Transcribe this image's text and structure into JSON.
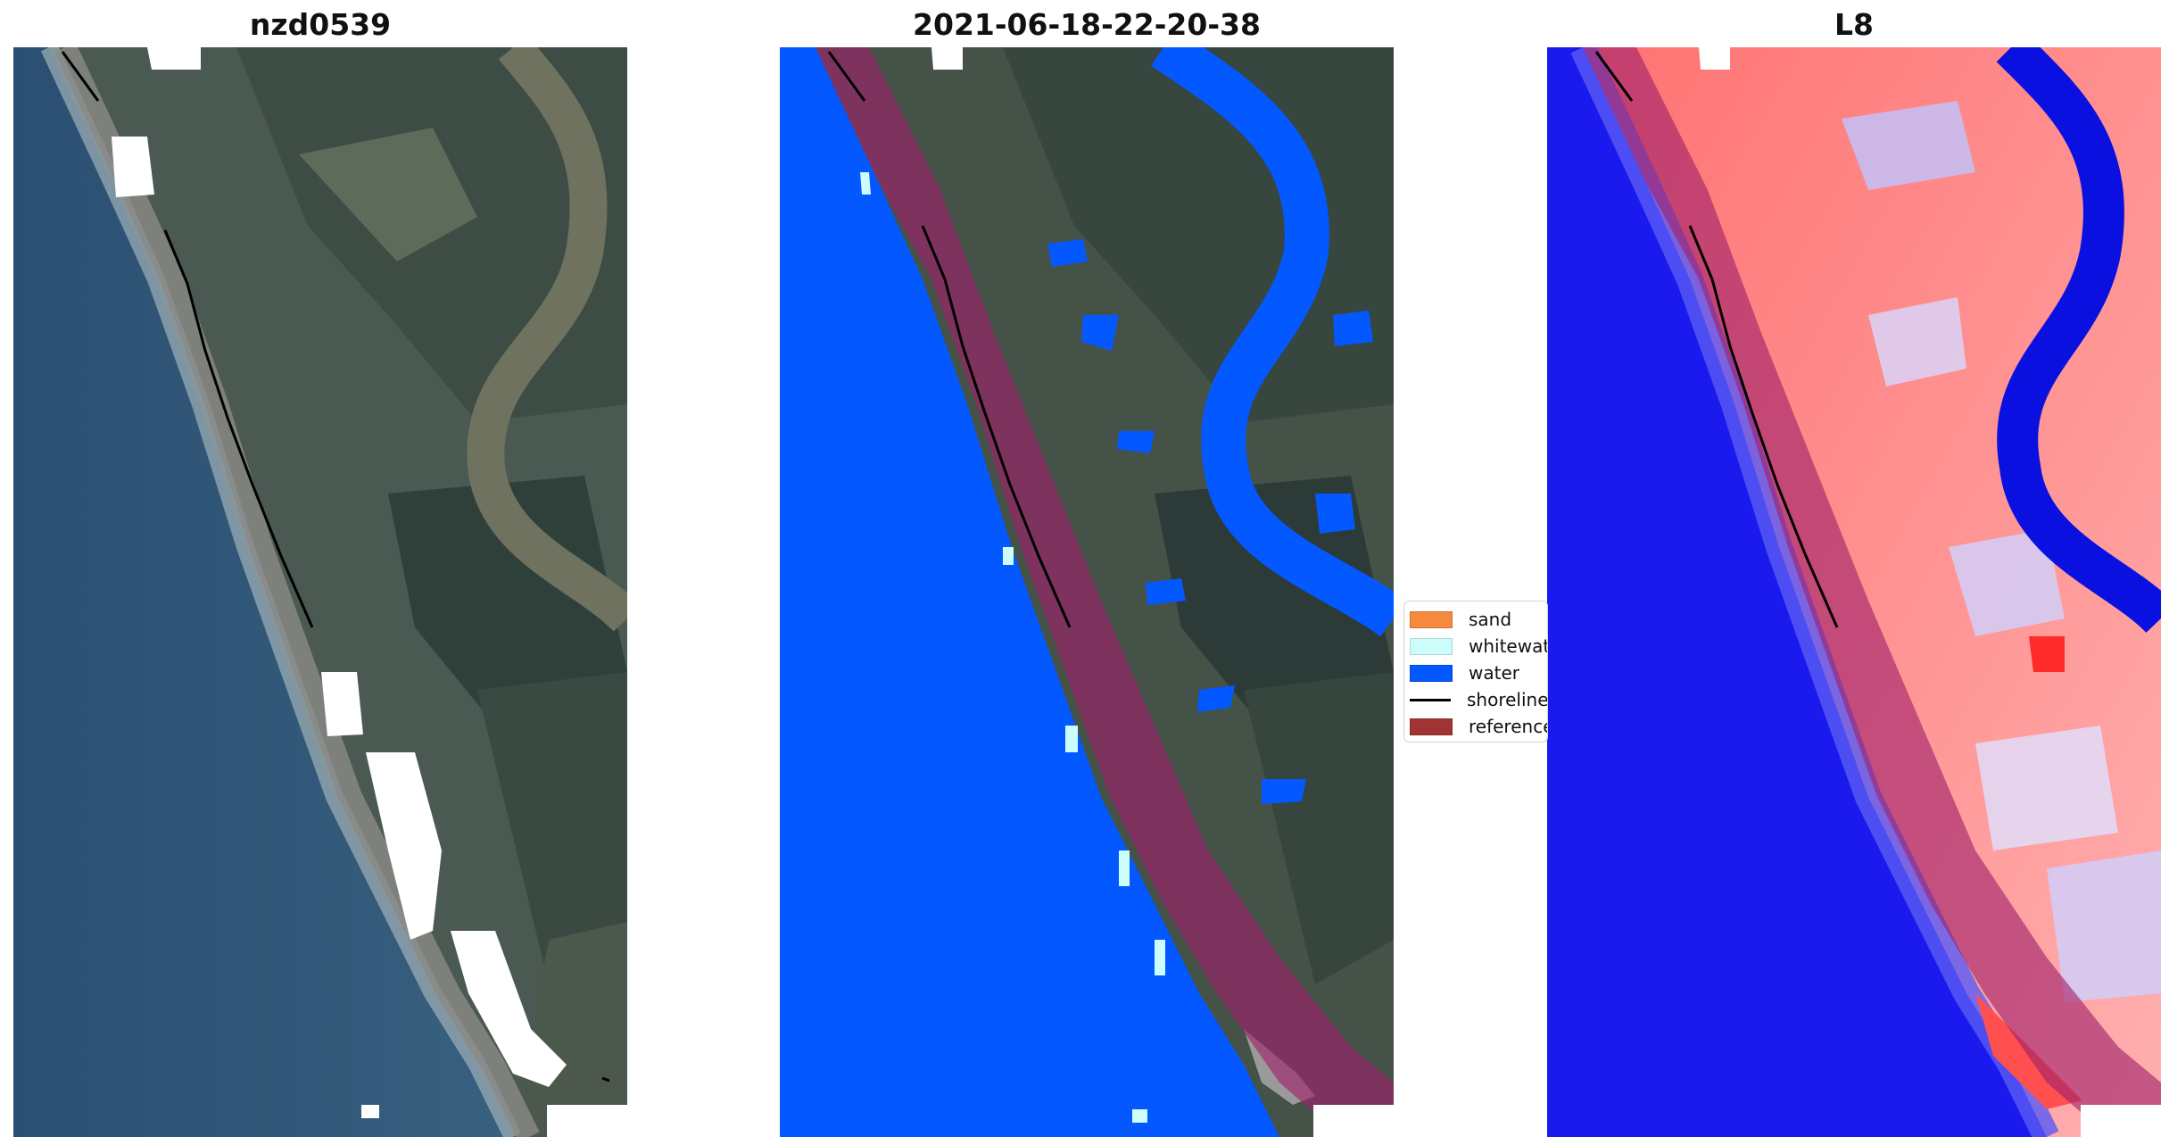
{
  "panels": [
    {
      "title": "nzd0539"
    },
    {
      "title": "2021-06-18-22-20-38"
    },
    {
      "title": "L8"
    }
  ],
  "legend": {
    "items": [
      {
        "label": "sand",
        "color": "#f58a3c"
      },
      {
        "label": "whitewater",
        "color": "#ccfdfb"
      },
      {
        "label": "water",
        "color": "#0358ff"
      },
      {
        "label": "shoreline",
        "color": "#000000"
      },
      {
        "label": "reference shoreline buffer",
        "color": "#a03434"
      }
    ]
  },
  "colors": {
    "ocean_rgb": "#2f5477",
    "land_rgb": "#4c5b52",
    "water_class": "#0358ff",
    "buffer": "#a0206a",
    "index_water": "#1a1aee",
    "index_land": "#ff8a8a"
  }
}
